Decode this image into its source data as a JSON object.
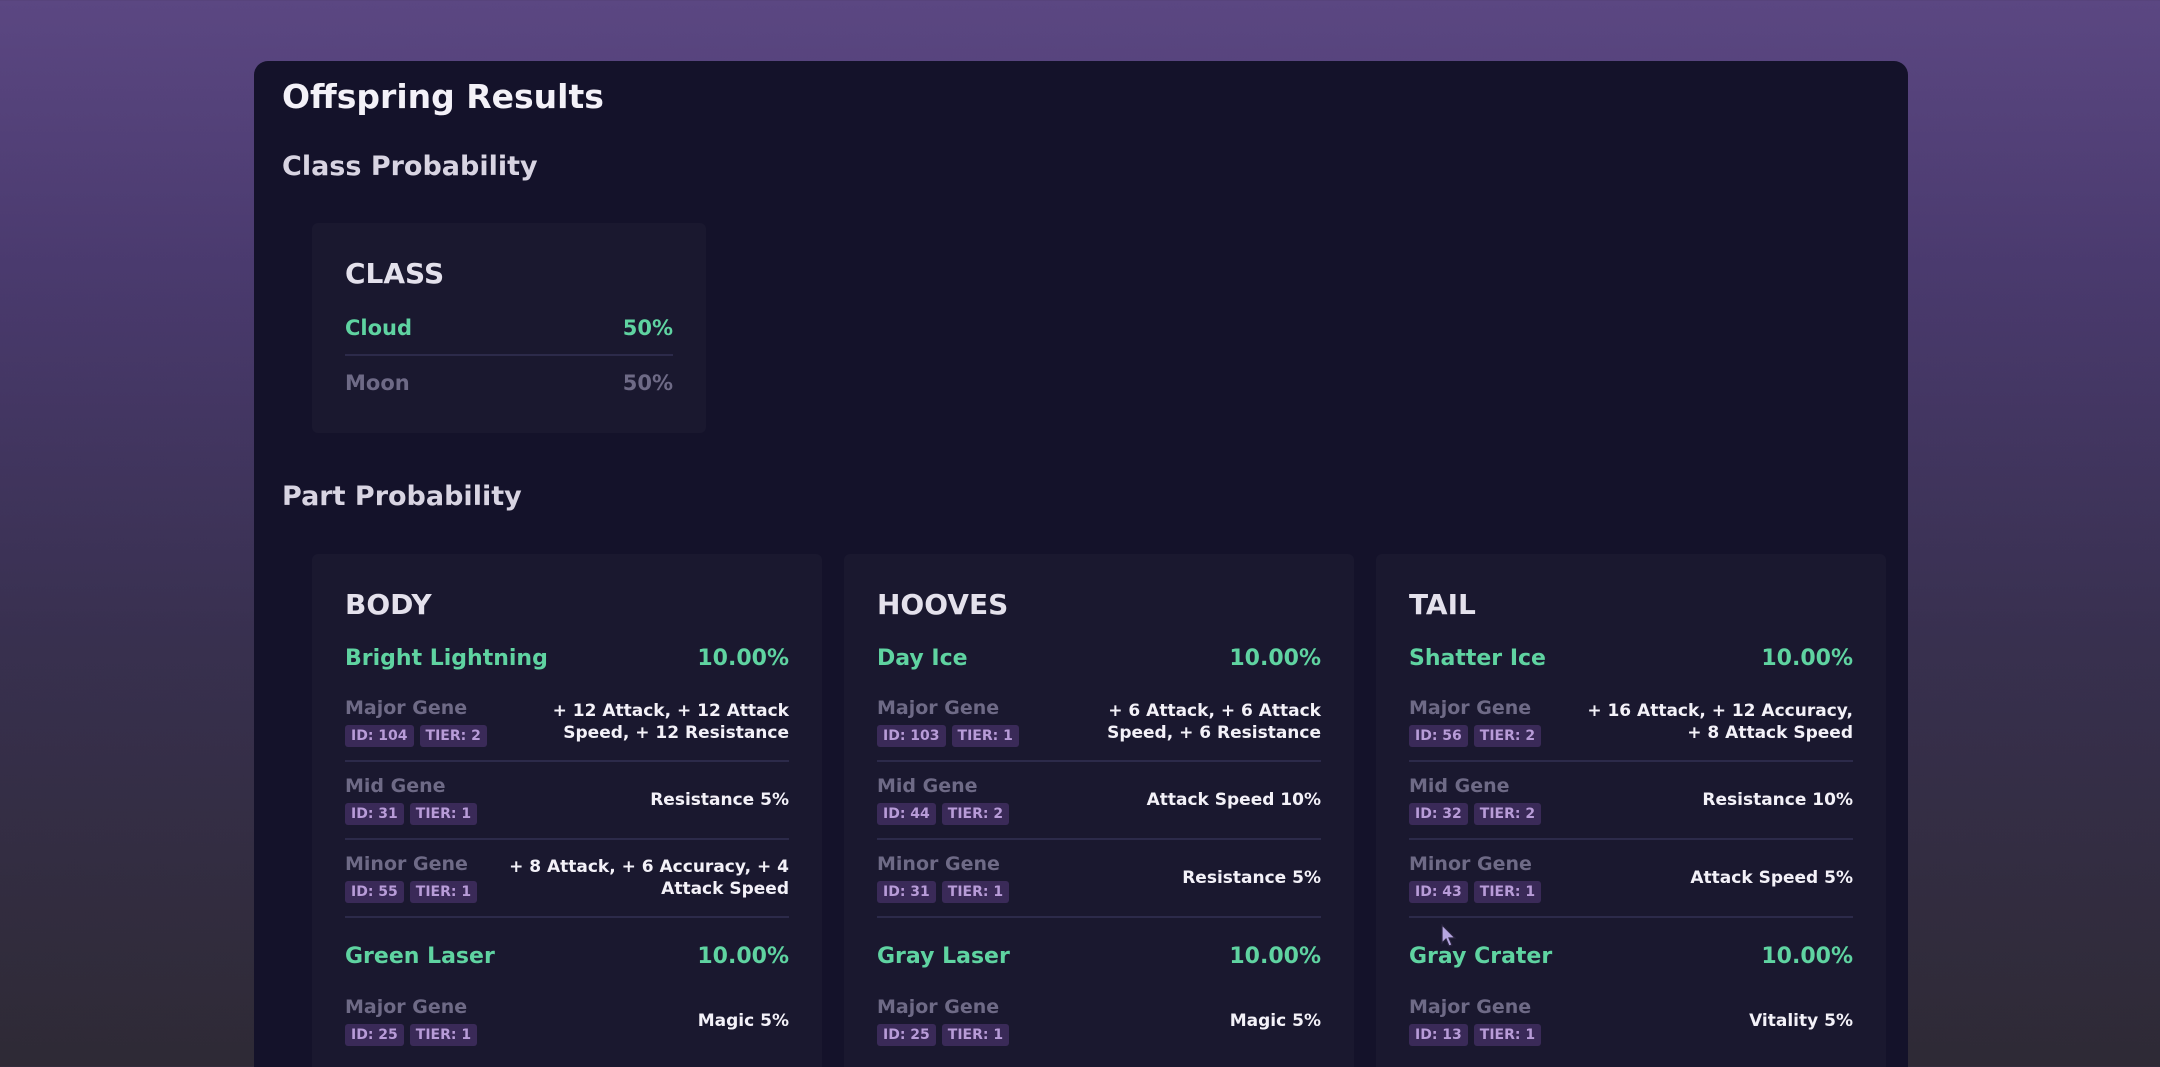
{
  "title": "Offspring Results",
  "class_section": {
    "title": "Class Probability",
    "heading": "CLASS",
    "rows": [
      {
        "name": "Cloud",
        "pct": "50%"
      },
      {
        "name": "Moon",
        "pct": "50%"
      }
    ]
  },
  "part_section": {
    "title": "Part Probability",
    "cards": [
      {
        "heading": "BODY",
        "parts": [
          {
            "name": "Bright Lightning",
            "pct": "10.00%",
            "genes": [
              {
                "label": "Major Gene",
                "id": "ID: 104",
                "tier": "TIER: 2",
                "value": "+ 12 Attack, + 12 Attack Speed, + 12 Resistance"
              },
              {
                "label": "Mid Gene",
                "id": "ID: 31",
                "tier": "TIER: 1",
                "value": "Resistance 5%"
              },
              {
                "label": "Minor Gene",
                "id": "ID: 55",
                "tier": "TIER: 1",
                "value": "+ 8 Attack, + 6 Accuracy, + 4 Attack Speed"
              }
            ]
          },
          {
            "name": "Green Laser",
            "pct": "10.00%",
            "genes": [
              {
                "label": "Major Gene",
                "id": "ID: 25",
                "tier": "TIER: 1",
                "value": "Magic 5%"
              }
            ]
          }
        ]
      },
      {
        "heading": "HOOVES",
        "parts": [
          {
            "name": "Day Ice",
            "pct": "10.00%",
            "genes": [
              {
                "label": "Major Gene",
                "id": "ID: 103",
                "tier": "TIER: 1",
                "value": "+ 6 Attack, + 6 Attack Speed, + 6 Resistance"
              },
              {
                "label": "Mid Gene",
                "id": "ID: 44",
                "tier": "TIER: 2",
                "value": "Attack Speed 10%"
              },
              {
                "label": "Minor Gene",
                "id": "ID: 31",
                "tier": "TIER: 1",
                "value": "Resistance 5%"
              }
            ]
          },
          {
            "name": "Gray Laser",
            "pct": "10.00%",
            "genes": [
              {
                "label": "Major Gene",
                "id": "ID: 25",
                "tier": "TIER: 1",
                "value": "Magic 5%"
              }
            ]
          }
        ]
      },
      {
        "heading": "TAIL",
        "parts": [
          {
            "name": "Shatter Ice",
            "pct": "10.00%",
            "genes": [
              {
                "label": "Major Gene",
                "id": "ID: 56",
                "tier": "TIER: 2",
                "value": "+ 16 Attack, + 12 Accuracy, + 8 Attack Speed"
              },
              {
                "label": "Mid Gene",
                "id": "ID: 32",
                "tier": "TIER: 2",
                "value": "Resistance 10%"
              },
              {
                "label": "Minor Gene",
                "id": "ID: 43",
                "tier": "TIER: 1",
                "value": "Attack Speed 5%"
              }
            ]
          },
          {
            "name": "Gray Crater",
            "pct": "10.00%",
            "genes": [
              {
                "label": "Major Gene",
                "id": "ID: 13",
                "tier": "TIER: 1",
                "value": "Vitality 5%"
              }
            ]
          }
        ]
      }
    ]
  }
}
